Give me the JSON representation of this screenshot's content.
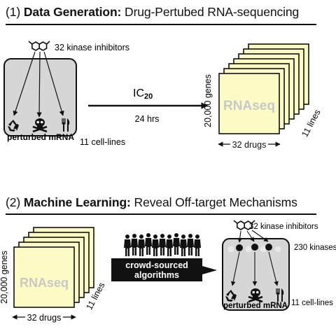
{
  "section1": {
    "number": "(1)",
    "title_bold": "Data Generation:",
    "title_rest": "Drug-Pertubed RNA-sequencing",
    "inhibitors_label": "32 kinase inhibitors",
    "perturbed_label": "perturbed mRNA",
    "cell_lines_label": "11 cell-lines",
    "ic_main": "IC",
    "ic_sub": "20",
    "duration": "24 hrs",
    "genes_label": "20,000 genes",
    "rnaseq_label": "RNAseq",
    "lines_label": "11 lines",
    "drugs_label": "32 drugs"
  },
  "section2": {
    "number": "(2)",
    "title_bold": "Machine Learning:",
    "title_rest": "Reveal Off-target Mechanisms",
    "genes_label": "20,000 genes",
    "rnaseq_label": "RNAseq",
    "lines_label": "11 lines",
    "drugs_label": "32 drugs",
    "crowd_label_line1": "crowd-sourced",
    "crowd_label_line2": "algorithms",
    "inhibitors_label": "32 kinase inhibitors",
    "kinases_label": "230 kinases",
    "perturbed_label": "perturbed mRNA",
    "cell_lines_label": "11 cell-lines"
  },
  "colors": {
    "paper_fill": "#fbfbc3",
    "cell_box_fill": "#d6d6d6",
    "rnaseq_text": "#c8c8c8",
    "ink": "#111111"
  }
}
